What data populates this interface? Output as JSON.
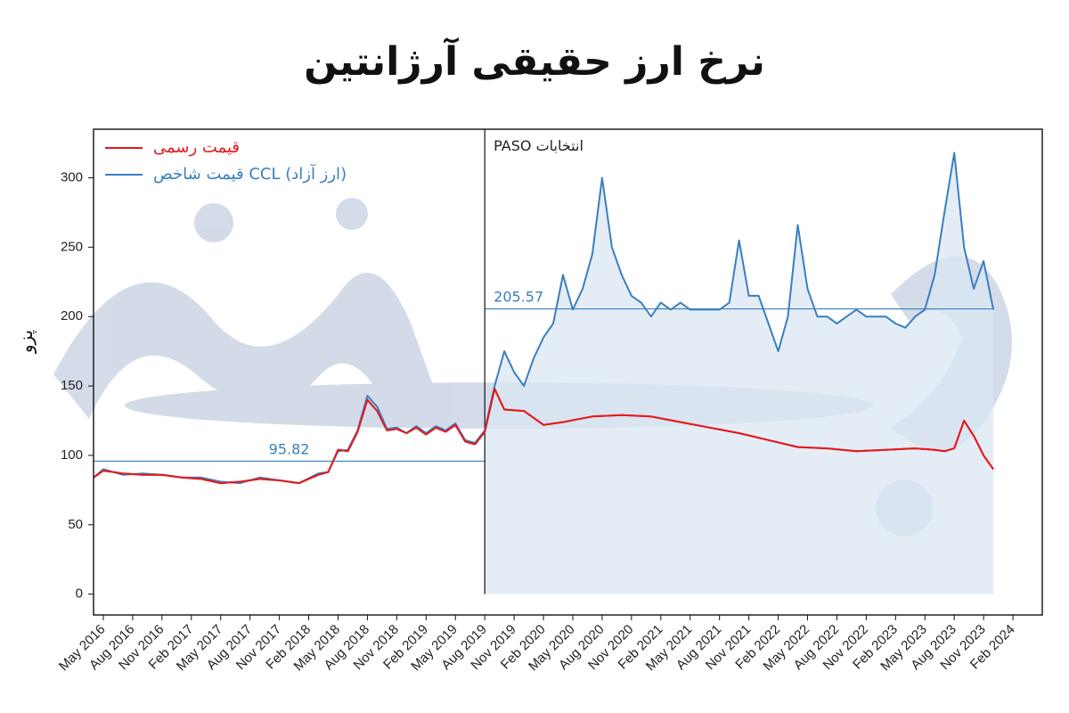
{
  "title": "نرخ ارز حقیقی آرژانتین",
  "colors": {
    "official": "#e31a1c",
    "ccl": "#3a7fbf",
    "fill": "#dbe7f3",
    "text": "#222222"
  },
  "chart_data": {
    "type": "line",
    "title": "نرخ ارز حقیقی آرژانتین",
    "ylabel": "پزو",
    "xlabel": "",
    "ylim": [
      -15,
      335
    ],
    "yticks": [
      0,
      50,
      100,
      150,
      200,
      250,
      300
    ],
    "xticks": [
      "May 2016",
      "Aug 2016",
      "Nov 2016",
      "Feb 2017",
      "May 2017",
      "Aug 2017",
      "Nov 2017",
      "Feb 2018",
      "May 2018",
      "Aug 2018",
      "Nov 2018",
      "Feb 2019",
      "May 2019",
      "Aug 2019",
      "Nov 2019",
      "Feb 2020",
      "May 2020",
      "Aug 2020",
      "Nov 2020",
      "Feb 2021",
      "May 2021",
      "Aug 2021",
      "Nov 2021",
      "Feb 2022",
      "May 2022",
      "Aug 2022",
      "Nov 2022",
      "Feb 2023",
      "May 2023",
      "Aug 2023",
      "Nov 2023",
      "Feb 2024"
    ],
    "legend": {
      "position": "top-left"
    },
    "series": [
      {
        "name": "قیمت رسمی",
        "color": "#e31a1c",
        "x": [
          "2016-04",
          "2016-05",
          "2016-07",
          "2016-09",
          "2016-11",
          "2017-01",
          "2017-03",
          "2017-05",
          "2017-07",
          "2017-09",
          "2017-11",
          "2018-01",
          "2018-03",
          "2018-04",
          "2018-05",
          "2018-06",
          "2018-07",
          "2018-08",
          "2018-09",
          "2018-10",
          "2018-11",
          "2018-12",
          "2019-01",
          "2019-02",
          "2019-03",
          "2019-04",
          "2019-05",
          "2019-06",
          "2019-07",
          "2019-08",
          "2019-09",
          "2019-10",
          "2019-12",
          "2020-02",
          "2020-04",
          "2020-07",
          "2020-10",
          "2021-01",
          "2021-04",
          "2021-07",
          "2021-10",
          "2022-01",
          "2022-04",
          "2022-07",
          "2022-10",
          "2023-01",
          "2023-04",
          "2023-06",
          "2023-07",
          "2023-08",
          "2023-09",
          "2023-10",
          "2023-11",
          "2023-12"
        ],
        "values": [
          84,
          89,
          87,
          86,
          86,
          84,
          83,
          80,
          81,
          83,
          82,
          80,
          86,
          88,
          104,
          103,
          117,
          140,
          132,
          118,
          119,
          116,
          120,
          115,
          120,
          117,
          122,
          110,
          108,
          117,
          148,
          133,
          132,
          122,
          124,
          128,
          129,
          128,
          124,
          120,
          116,
          111,
          106,
          105,
          103,
          104,
          105,
          104,
          103,
          105,
          125,
          114,
          100,
          90
        ]
      },
      {
        "name": "قیمت شاخص CCL (ارز آزاد)",
        "color": "#3a7fbf",
        "x": [
          "2016-04",
          "2016-05",
          "2016-07",
          "2016-09",
          "2016-11",
          "2017-01",
          "2017-03",
          "2017-05",
          "2017-07",
          "2017-09",
          "2017-11",
          "2018-01",
          "2018-03",
          "2018-04",
          "2018-05",
          "2018-06",
          "2018-07",
          "2018-08",
          "2018-09",
          "2018-10",
          "2018-11",
          "2018-12",
          "2019-01",
          "2019-02",
          "2019-03",
          "2019-04",
          "2019-05",
          "2019-06",
          "2019-07",
          "2019-08",
          "2019-09",
          "2019-10",
          "2019-11",
          "2019-12",
          "2020-01",
          "2020-02",
          "2020-03",
          "2020-04",
          "2020-05",
          "2020-06",
          "2020-07",
          "2020-08",
          "2020-09",
          "2020-10",
          "2020-11",
          "2020-12",
          "2021-01",
          "2021-02",
          "2021-03",
          "2021-04",
          "2021-05",
          "2021-06",
          "2021-07",
          "2021-08",
          "2021-09",
          "2021-10",
          "2021-11",
          "2021-12",
          "2022-01",
          "2022-02",
          "2022-03",
          "2022-04",
          "2022-05",
          "2022-06",
          "2022-07",
          "2022-08",
          "2022-09",
          "2022-10",
          "2022-11",
          "2022-12",
          "2023-01",
          "2023-02",
          "2023-03",
          "2023-04",
          "2023-05",
          "2023-06",
          "2023-07",
          "2023-08",
          "2023-09",
          "2023-10",
          "2023-11",
          "2023-12"
        ],
        "values": [
          84,
          90,
          86,
          87,
          86,
          84,
          84,
          81,
          80,
          84,
          82,
          80,
          87,
          88,
          103,
          104,
          118,
          143,
          135,
          119,
          120,
          116,
          121,
          116,
          121,
          118,
          123,
          111,
          109,
          118,
          150,
          175,
          160,
          150,
          170,
          185,
          195,
          230,
          205,
          220,
          245,
          300,
          250,
          230,
          215,
          210,
          200,
          210,
          205,
          210,
          205,
          205,
          205,
          205,
          210,
          255,
          215,
          215,
          195,
          175,
          200,
          266,
          220,
          200,
          200,
          195,
          200,
          205,
          200,
          200,
          200,
          195,
          192,
          200,
          205,
          230,
          275,
          318,
          250,
          220,
          240,
          205
        ]
      }
    ],
    "annotations": [
      {
        "type": "vline",
        "x": "2019-08",
        "label": "PASO انتخابات"
      },
      {
        "type": "hline",
        "y": 95.82,
        "from": "2016-04",
        "to": "2019-08",
        "label": "95.82"
      },
      {
        "type": "hline",
        "y": 205.57,
        "from": "2019-08",
        "to": "2023-12",
        "label": "205.57"
      }
    ]
  }
}
